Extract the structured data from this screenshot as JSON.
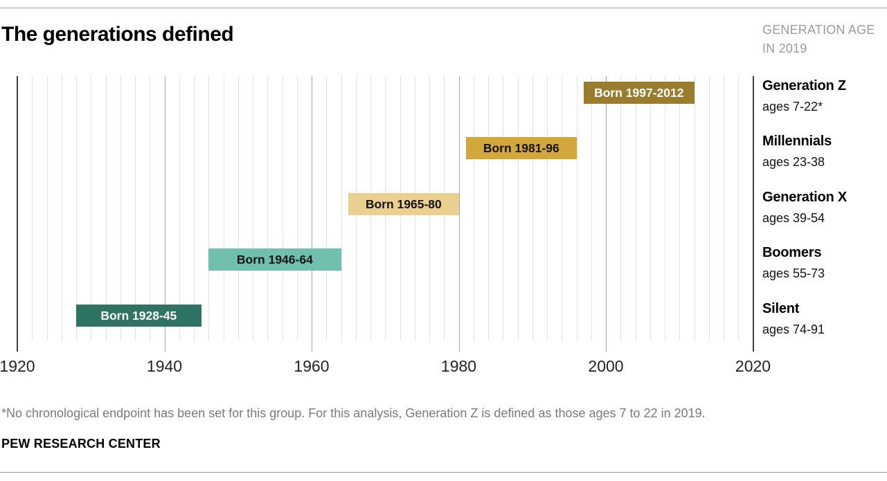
{
  "chart_data": {
    "type": "bar",
    "orientation": "horizontal-timeline",
    "title": "The generations defined",
    "right_header": [
      "GENERATION AGE",
      "IN 2019"
    ],
    "x_axis": {
      "min": 1920,
      "max": 2020,
      "major_ticks": [
        1920,
        1940,
        1960,
        1980,
        2000,
        2020
      ],
      "minor_step": 2,
      "grid": true
    },
    "series": [
      {
        "name": "Generation Z",
        "ages": "ages 7-22*",
        "start": 1997,
        "end": 2012,
        "bar_label": "Born 1997-2012",
        "color": "#9a7c2e",
        "text_color": "#ffffff"
      },
      {
        "name": "Millennials",
        "ages": "ages 23-38",
        "start": 1981,
        "end": 1996,
        "bar_label": "Born 1981-96",
        "color": "#d3a73c",
        "text_color": "#141414"
      },
      {
        "name": "Generation X",
        "ages": "ages 39-54",
        "start": 1965,
        "end": 1980,
        "bar_label": "Born 1965-80",
        "color": "#e9d08f",
        "text_color": "#141414"
      },
      {
        "name": "Boomers",
        "ages": "ages 55-73",
        "start": 1946,
        "end": 1964,
        "bar_label": "Born 1946-64",
        "color": "#6fc0ae",
        "text_color": "#141414"
      },
      {
        "name": "Silent",
        "ages": "ages 74-91",
        "start": 1928,
        "end": 1945,
        "bar_label": "Born 1928-45",
        "color": "#2e7363",
        "text_color": "#ffffff"
      }
    ],
    "footnote": "*No chronological endpoint has been set for this group. For this analysis, Generation Z is defined as those ages 7 to 22 in 2019.",
    "source": "PEW RESEARCH CENTER",
    "colors": {
      "rule": "#9a9a9a",
      "grid_minor": "#e2e2e2",
      "grid_major": "#a5a5a5",
      "grid_edge": "#3f3f3f",
      "muted_text": "#9b9b9b",
      "footnote_text": "#7a7a7a"
    }
  }
}
